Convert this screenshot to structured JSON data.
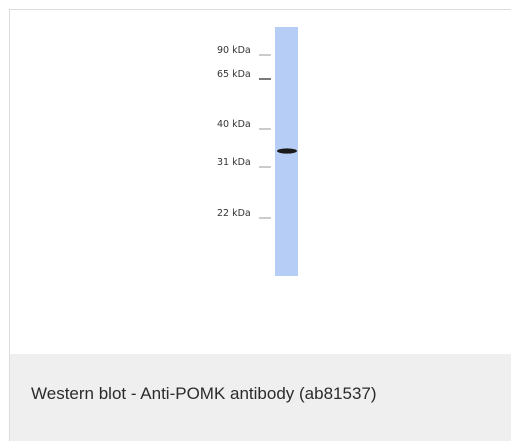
{
  "figure": {
    "markers": [
      {
        "label": "90 kDa"
      },
      {
        "label": "65 kDa"
      },
      {
        "label": "40 kDa"
      },
      {
        "label": "31 kDa"
      },
      {
        "label": "22 kDa"
      }
    ],
    "lane_color": "#b6cdf5",
    "band_color": "#1a1a1a"
  },
  "caption": {
    "text": "Western blot - Anti-POMK antibody (ab81537)"
  }
}
